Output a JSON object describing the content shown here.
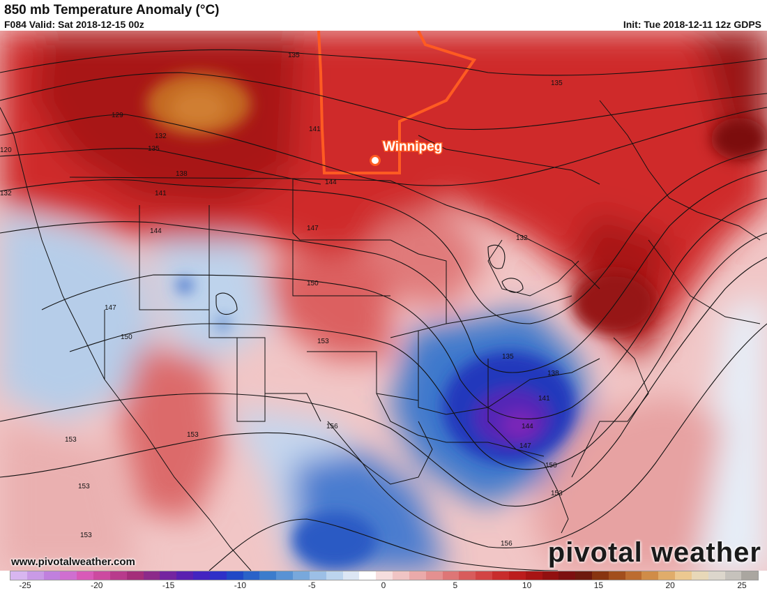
{
  "header": {
    "title": "850 mb Temperature Anomaly (°C)",
    "valid": "F084 Valid: Sat 2018-12-15 00z",
    "init": "Init: Tue 2018-12-11 12z GDPS"
  },
  "map": {
    "city": {
      "name": "Winnipeg"
    },
    "contour_labels": [
      "120",
      "129",
      "132",
      "135",
      "138",
      "141",
      "144",
      "147",
      "150",
      "153",
      "156"
    ]
  },
  "footer": {
    "website": "www.pivotalweather.com",
    "brand": "pivotal weather"
  },
  "colorbar": {
    "ticks": [
      "-25",
      "-20",
      "-15",
      "-10",
      "-5",
      "0",
      "5",
      "10",
      "15",
      "20",
      "25"
    ],
    "colors": [
      "#d8b6f0",
      "#c99ae6",
      "#c080de",
      "#cf6fd0",
      "#d85ab8",
      "#cc4aa0",
      "#b83b8c",
      "#a42e7a",
      "#8c2a8a",
      "#7424a0",
      "#5a20b0",
      "#4324c0",
      "#2e30c8",
      "#2048c6",
      "#2a62c8",
      "#3c7ccc",
      "#5892d4",
      "#78a8dc",
      "#9cbfe6",
      "#bcd4ee",
      "#dce6f4",
      "#ffffff",
      "#f6dede",
      "#f0c4c4",
      "#eaaaaa",
      "#e49090",
      "#de7676",
      "#d85c5c",
      "#d24444",
      "#c82c2c",
      "#bc1c1c",
      "#a81414",
      "#921010",
      "#7c1010",
      "#6e1a0e",
      "#883410",
      "#a24e1c",
      "#bc6c30",
      "#d08c48",
      "#e0ac6a",
      "#ecc890",
      "#e8d8b8",
      "#dcd6cc",
      "#c6c2bc",
      "#aaa6a0"
    ]
  },
  "colors": {
    "city_accent": "#ff5b22",
    "warm": "#cc2020",
    "cold": "#3030c0"
  }
}
